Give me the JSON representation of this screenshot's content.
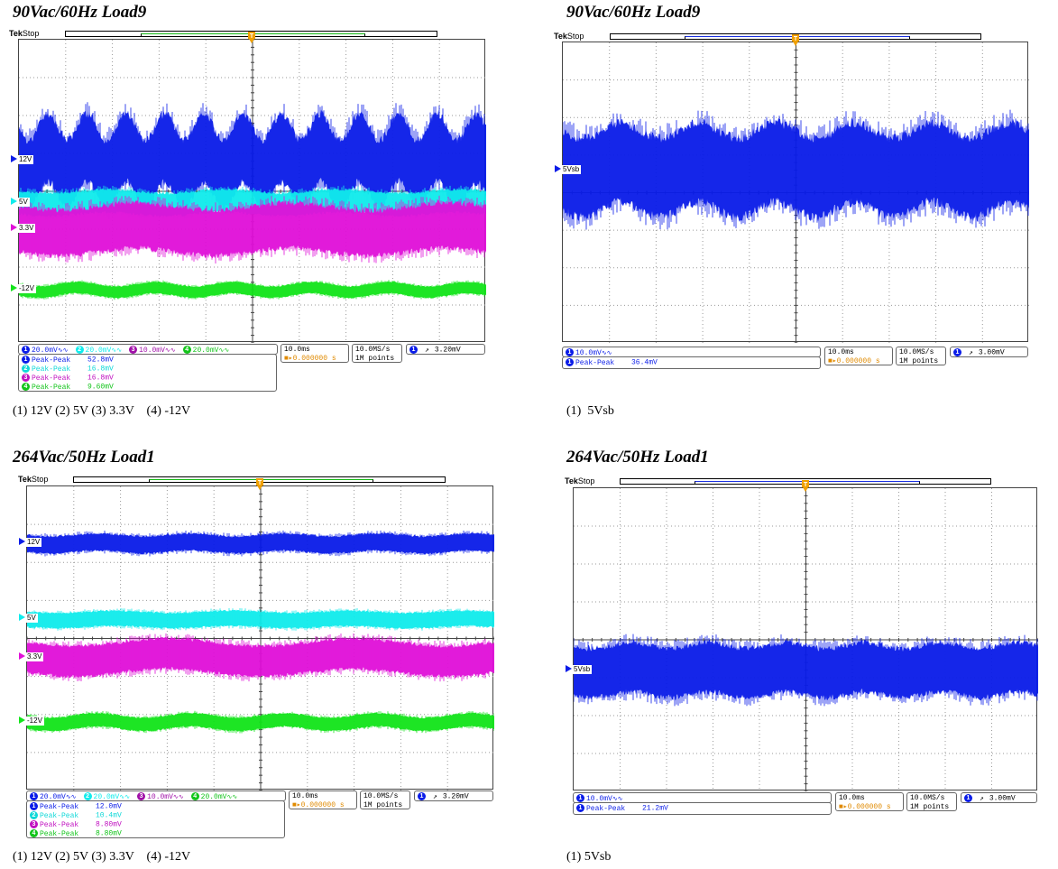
{
  "chart_data": [
    {
      "type": "line",
      "title": "90Vac/60Hz Load9",
      "caption": "(1) 12V (2) 5V (3) 3.3V    (4) -12V",
      "tek_label": "Tek",
      "status": "Stop",
      "grid": true,
      "series": [
        {
          "name": "12V",
          "channel": "1",
          "color": "#0a1ce8",
          "ripple_mv": 52.8,
          "band_div": [
            3.2,
            1.8
          ],
          "modulation_div": 0.35,
          "mod_cycles": 12
        },
        {
          "name": "5V",
          "channel": "2",
          "color": "#10ecec",
          "ripple_mv": 16.8,
          "band_div": [
            4.3,
            0.6
          ],
          "modulation_div": 0.05,
          "mod_cycles": 4
        },
        {
          "name": "3.3V",
          "channel": "3",
          "color": "#e010d8",
          "ripple_mv": 16.8,
          "band_div": [
            5.0,
            1.2
          ],
          "modulation_div": 0.1,
          "mod_cycles": 3
        },
        {
          "name": "-12V",
          "channel": "4",
          "color": "#12e41a",
          "ripple_mv": 9.6,
          "band_div": [
            6.6,
            0.3
          ],
          "modulation_div": 0.06,
          "mod_cycles": 6
        }
      ],
      "channel_scales": [
        {
          "ch": "1",
          "scale": "20.0mV",
          "color": "#0a1ce8"
        },
        {
          "ch": "2",
          "scale": "20.0mV",
          "color": "#10ecec"
        },
        {
          "ch": "3",
          "scale": "10.0mV",
          "color": "#a010a8"
        },
        {
          "ch": "4",
          "scale": "20.0mV",
          "color": "#12c41a"
        }
      ],
      "measurements": [
        {
          "ch": "1",
          "label": "Peak-Peak",
          "value": "52.8mV",
          "color": "#0a1ce8"
        },
        {
          "ch": "2",
          "label": "Peak-Peak",
          "value": "16.8mV",
          "color": "#10d8d8"
        },
        {
          "ch": "3",
          "label": "Peak-Peak",
          "value": "16.8mV",
          "color": "#c010c0"
        },
        {
          "ch": "4",
          "label": "Peak-Peak",
          "value": "9.60mV",
          "color": "#12c41a"
        }
      ],
      "timebase": "10.0ms",
      "trigger_pos": "0.000000 s",
      "sample_rate": "10.0MS/s",
      "record_length": "1M points",
      "trigger_ch": "1",
      "trigger_level": "3.20mV"
    },
    {
      "type": "line",
      "title": "90Vac/60Hz Load9",
      "caption": "(1)  5Vsb",
      "tek_label": "Tek",
      "status": "Stop",
      "grid": true,
      "series": [
        {
          "name": "5Vsb",
          "channel": "1",
          "color": "#0a1ce8",
          "ripple_mv": 36.4,
          "band_div": [
            3.4,
            2.1
          ],
          "modulation_div": 0.2,
          "mod_cycles": 6
        }
      ],
      "channel_scales": [
        {
          "ch": "1",
          "scale": "10.0mV",
          "color": "#0a1ce8"
        }
      ],
      "measurements": [
        {
          "ch": "1",
          "label": "Peak-Peak",
          "value": "36.4mV",
          "color": "#0a1ce8"
        }
      ],
      "timebase": "10.0ms",
      "trigger_pos": "0.000000 s",
      "sample_rate": "10.0MS/s",
      "record_length": "1M points",
      "trigger_ch": "1",
      "trigger_level": "3.00mV"
    },
    {
      "type": "line",
      "title": "264Vac/50Hz Load1",
      "caption": "(1) 12V (2) 5V (3) 3.3V    (4) -12V",
      "tek_label": "Tek",
      "status": "Stop",
      "grid": true,
      "series": [
        {
          "name": "12V",
          "channel": "1",
          "color": "#0a1ce8",
          "ripple_mv": 12.0,
          "band_div": [
            1.5,
            0.45
          ],
          "modulation_div": 0.04,
          "mod_cycles": 5
        },
        {
          "name": "5V",
          "channel": "2",
          "color": "#10ecec",
          "ripple_mv": 10.4,
          "band_div": [
            3.5,
            0.4
          ],
          "modulation_div": 0.03,
          "mod_cycles": 4
        },
        {
          "name": "3.3V",
          "channel": "3",
          "color": "#e010d8",
          "ripple_mv": 8.8,
          "band_div": [
            4.5,
            0.8
          ],
          "modulation_div": 0.1,
          "mod_cycles": 2.5
        },
        {
          "name": "-12V",
          "channel": "4",
          "color": "#12e41a",
          "ripple_mv": 8.8,
          "band_div": [
            6.2,
            0.35
          ],
          "modulation_div": 0.06,
          "mod_cycles": 5
        }
      ],
      "channel_scales": [
        {
          "ch": "1",
          "scale": "20.0mV",
          "color": "#0a1ce8"
        },
        {
          "ch": "2",
          "scale": "20.0mV",
          "color": "#10ecec"
        },
        {
          "ch": "3",
          "scale": "10.0mV",
          "color": "#a010a8"
        },
        {
          "ch": "4",
          "scale": "20.0mV",
          "color": "#12c41a"
        }
      ],
      "measurements": [
        {
          "ch": "1",
          "label": "Peak-Peak",
          "value": "12.0mV",
          "color": "#0a1ce8"
        },
        {
          "ch": "2",
          "label": "Peak-Peak",
          "value": "10.4mV",
          "color": "#10d8d8"
        },
        {
          "ch": "3",
          "label": "Peak-Peak",
          "value": "8.80mV",
          "color": "#c010c0"
        },
        {
          "ch": "4",
          "label": "Peak-Peak",
          "value": "8.80mV",
          "color": "#12c41a"
        }
      ],
      "timebase": "10.0ms",
      "trigger_pos": "0.000000 s",
      "sample_rate": "10.0MS/s",
      "record_length": "1M points",
      "trigger_ch": "1",
      "trigger_level": "3.20mV"
    },
    {
      "type": "line",
      "title": "264Vac/50Hz Load1",
      "caption": "(1) 5Vsb",
      "tek_label": "Tek",
      "status": "Stop",
      "grid": true,
      "series": [
        {
          "name": "5Vsb",
          "channel": "1",
          "color": "#0a1ce8",
          "ripple_mv": 21.2,
          "band_div": [
            4.8,
            1.3
          ],
          "modulation_div": 0.08,
          "mod_cycles": 6
        }
      ],
      "channel_scales": [
        {
          "ch": "1",
          "scale": "10.0mV",
          "color": "#0a1ce8"
        }
      ],
      "measurements": [
        {
          "ch": "1",
          "label": "Peak-Peak",
          "value": "21.2mV",
          "color": "#0a1ce8"
        }
      ],
      "timebase": "10.0ms",
      "trigger_pos": "0.000000 s",
      "sample_rate": "10.0MS/s",
      "record_length": "1M points",
      "trigger_ch": "1",
      "trigger_level": "3.00mV"
    }
  ]
}
